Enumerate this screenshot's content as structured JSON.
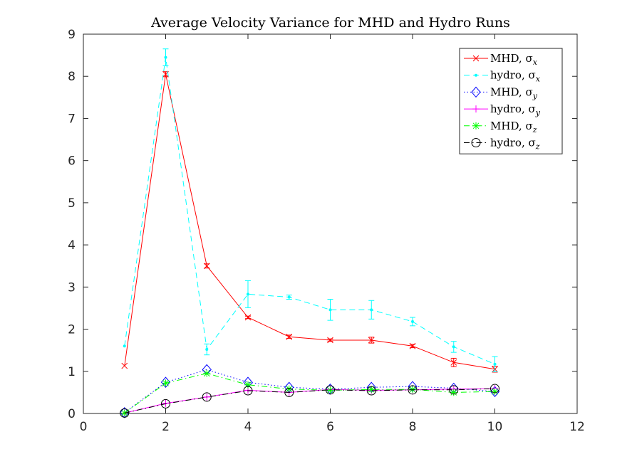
{
  "chart_data": {
    "type": "line",
    "title": "Average Velocity Variance for MHD and Hydro Runs",
    "xlabel": "",
    "ylabel": "",
    "xlim": [
      0,
      12
    ],
    "ylim": [
      0,
      9
    ],
    "xticks": [
      "0",
      "2",
      "4",
      "6",
      "8",
      "10",
      "12"
    ],
    "yticks": [
      "0",
      "1",
      "2",
      "3",
      "4",
      "5",
      "6",
      "7",
      "8",
      "9"
    ],
    "grid": false,
    "legend_position": "top-right",
    "x": [
      1,
      2,
      3,
      4,
      5,
      6,
      7,
      8,
      9,
      10
    ],
    "series": [
      {
        "name": "MHD, σ",
        "subscript": "x",
        "color": "#ff0000",
        "line": "solid",
        "marker": "x",
        "values": [
          1.13,
          8.05,
          3.5,
          2.28,
          1.82,
          1.74,
          1.74,
          1.6,
          1.21,
          1.05
        ],
        "errors": [
          0,
          0.06,
          0.05,
          0.03,
          0.04,
          0.03,
          0.07,
          0.04,
          0.1,
          0.07
        ]
      },
      {
        "name": "hydro, σ",
        "subscript": "x",
        "color": "#00ffff",
        "line": "dashed",
        "marker": "dot",
        "values": [
          1.6,
          8.45,
          1.52,
          2.83,
          2.76,
          2.46,
          2.46,
          2.18,
          1.58,
          1.17
        ],
        "errors": [
          0,
          0.2,
          0.13,
          0.32,
          0.05,
          0.25,
          0.22,
          0.1,
          0.13,
          0.18
        ]
      },
      {
        "name": "MHD, σ",
        "subscript": "y",
        "color": "#0000ff",
        "line": "dotted",
        "marker": "diamond",
        "values": [
          0.02,
          0.74,
          1.04,
          0.74,
          0.62,
          0.58,
          0.62,
          0.64,
          0.6,
          0.52
        ],
        "errors": [
          0,
          0,
          0,
          0,
          0,
          0,
          0,
          0,
          0,
          0
        ]
      },
      {
        "name": "hydro, σ",
        "subscript": "y",
        "color": "#ff00ff",
        "line": "solid",
        "marker": "plus",
        "values": [
          0.01,
          0.24,
          0.39,
          0.55,
          0.5,
          0.57,
          0.55,
          0.56,
          0.58,
          0.59
        ],
        "errors": [
          0,
          0,
          0,
          0,
          0,
          0,
          0,
          0,
          0,
          0
        ]
      },
      {
        "name": "MHD, σ",
        "subscript": "z",
        "color": "#00ff00",
        "line": "dashdot",
        "marker": "star",
        "values": [
          0.01,
          0.72,
          0.95,
          0.68,
          0.58,
          0.55,
          0.57,
          0.57,
          0.5,
          0.52
        ],
        "errors": [
          0,
          0,
          0,
          0,
          0,
          0,
          0,
          0,
          0,
          0
        ]
      },
      {
        "name": "hydro, σ",
        "subscript": "z",
        "color": "#000000",
        "line": "dashdot",
        "marker": "circle",
        "values": [
          0.01,
          0.23,
          0.39,
          0.54,
          0.5,
          0.56,
          0.54,
          0.56,
          0.56,
          0.59
        ],
        "errors": [
          0,
          0,
          0,
          0,
          0,
          0,
          0,
          0,
          0,
          0
        ]
      }
    ]
  }
}
